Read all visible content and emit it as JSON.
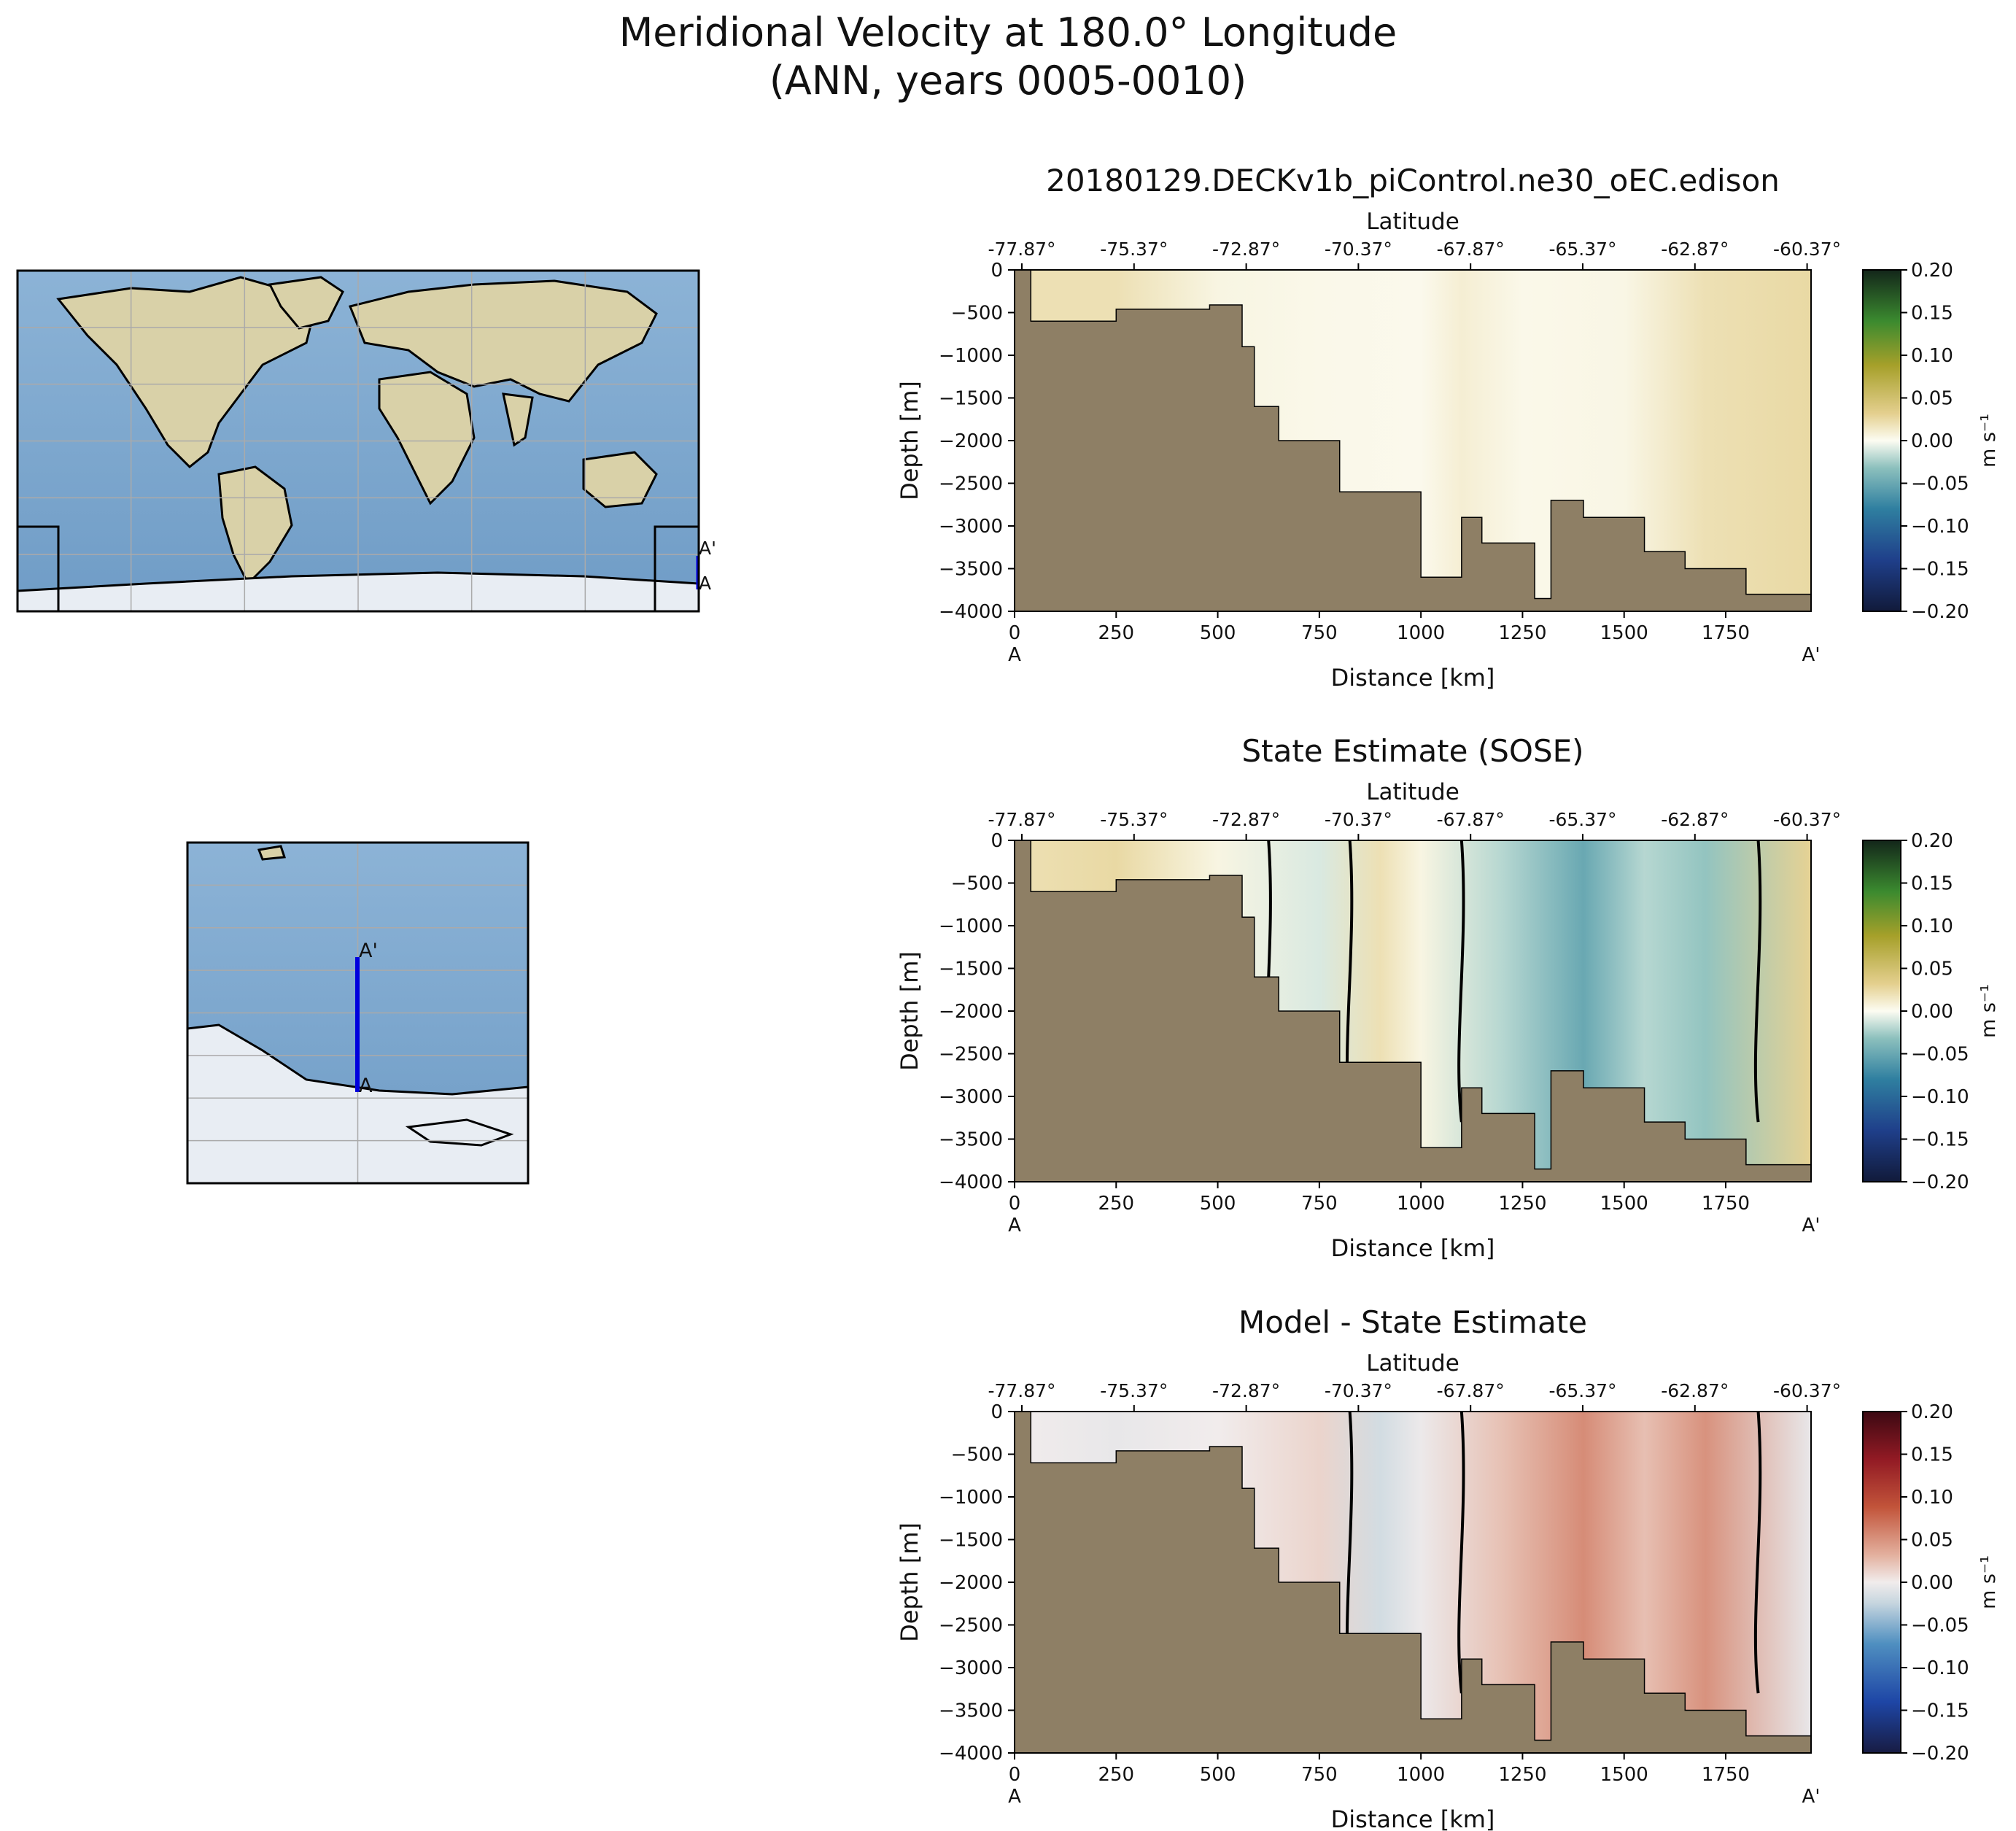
{
  "figure": {
    "title_line1": "Meridional Velocity at 180.0° Longitude",
    "title_line2": "(ANN, years 0005-0010)"
  },
  "maps": {
    "global": {
      "endpoint_a": "A",
      "endpoint_a_prime": "A'",
      "line_color": "#0000dd",
      "land_color": "#d9d1a8",
      "ocean_color": "#7fa8cf",
      "ice_color": "#e8edf3"
    },
    "zoom": {
      "endpoint_a": "A",
      "endpoint_a_prime": "A'",
      "line_color": "#0000dd"
    }
  },
  "chart_data": [
    {
      "type": "heatmap",
      "title": "20180129.DECKv1b_piControl.ne30_oEC.edison",
      "xlabel": "Distance [km]",
      "ylabel": "Depth [m]",
      "top_xlabel": "Latitude",
      "colorbar_label": "m s⁻¹",
      "colormap": "delta (blue-white-yellow-green)",
      "xlim": [
        0,
        1960
      ],
      "ylim": [
        -4000,
        0
      ],
      "clim": [
        -0.2,
        0.2
      ],
      "x_ticks": [
        0,
        250,
        500,
        750,
        1000,
        1250,
        1500,
        1750
      ],
      "y_ticks": [
        0,
        -500,
        -1000,
        -1500,
        -2000,
        -2500,
        -3000,
        -3500,
        -4000
      ],
      "lat_ticks": [
        "-77.87°",
        "-75.37°",
        "-72.87°",
        "-70.37°",
        "-67.87°",
        "-65.37°",
        "-62.87°",
        "-60.37°"
      ],
      "colorbar_ticks": [
        "0.20",
        "0.15",
        "0.10",
        "0.05",
        "0.00",
        "−0.05",
        "−0.10",
        "−0.15",
        "−0.20"
      ],
      "endpoints": [
        "A",
        "A'"
      ],
      "velocity_profile": {
        "distance_km": [
          0,
          250,
          500,
          750,
          1000,
          1100,
          1250,
          1500,
          1700,
          1960
        ],
        "v_m_s": [
          0.02,
          0.02,
          0.005,
          0.003,
          0.002,
          0.01,
          0.003,
          0.004,
          0.02,
          0.025
        ]
      },
      "bathymetry": {
        "distance_km": [
          0,
          40,
          250,
          480,
          560,
          590,
          650,
          800,
          1000,
          1100,
          1150,
          1280,
          1320,
          1400,
          1550,
          1650,
          1800,
          1960
        ],
        "depth_m": [
          0,
          -600,
          -460,
          -410,
          -900,
          -1600,
          -2000,
          -2600,
          -3600,
          -2900,
          -3200,
          -3850,
          -2700,
          -2900,
          -3300,
          -3500,
          -3800,
          -4000
        ]
      }
    },
    {
      "type": "heatmap",
      "title": "State Estimate (SOSE)",
      "xlabel": "Distance [km]",
      "ylabel": "Depth [m]",
      "top_xlabel": "Latitude",
      "colorbar_label": "m s⁻¹",
      "colormap": "delta (blue-white-yellow-green)",
      "xlim": [
        0,
        1960
      ],
      "ylim": [
        -4000,
        0
      ],
      "clim": [
        -0.2,
        0.2
      ],
      "x_ticks": [
        0,
        250,
        500,
        750,
        1000,
        1250,
        1500,
        1750
      ],
      "y_ticks": [
        0,
        -500,
        -1000,
        -1500,
        -2000,
        -2500,
        -3000,
        -3500,
        -4000
      ],
      "lat_ticks": [
        "-77.87°",
        "-75.37°",
        "-72.87°",
        "-70.37°",
        "-67.87°",
        "-65.37°",
        "-62.87°",
        "-60.37°"
      ],
      "colorbar_ticks": [
        "0.20",
        "0.15",
        "0.10",
        "0.05",
        "0.00",
        "−0.05",
        "−0.10",
        "−0.15",
        "−0.20"
      ],
      "endpoints": [
        "A",
        "A'"
      ],
      "velocity_profile": {
        "distance_km": [
          0,
          250,
          500,
          750,
          900,
          1000,
          1200,
          1400,
          1550,
          1700,
          1960
        ],
        "v_m_s": [
          0.02,
          0.025,
          0.005,
          -0.01,
          0.02,
          0.005,
          -0.02,
          -0.05,
          -0.02,
          -0.03,
          0.03
        ]
      },
      "bathymetry": {
        "distance_km": [
          0,
          40,
          250,
          480,
          560,
          590,
          650,
          800,
          1000,
          1100,
          1150,
          1280,
          1320,
          1400,
          1550,
          1650,
          1800,
          1960
        ],
        "depth_m": [
          0,
          -600,
          -460,
          -410,
          -900,
          -1600,
          -2000,
          -2600,
          -3600,
          -2900,
          -3200,
          -3850,
          -2700,
          -2900,
          -3300,
          -3500,
          -3800,
          -4000
        ]
      }
    },
    {
      "type": "heatmap",
      "title": "Model - State Estimate",
      "xlabel": "Distance [km]",
      "ylabel": "Depth [m]",
      "top_xlabel": "Latitude",
      "colorbar_label": "m s⁻¹",
      "colormap": "balance (blue-white-red)",
      "xlim": [
        0,
        1960
      ],
      "ylim": [
        -4000,
        0
      ],
      "clim": [
        -0.2,
        0.2
      ],
      "x_ticks": [
        0,
        250,
        500,
        750,
        1000,
        1250,
        1500,
        1750
      ],
      "y_ticks": [
        0,
        -500,
        -1000,
        -1500,
        -2000,
        -2500,
        -3000,
        -3500,
        -4000
      ],
      "lat_ticks": [
        "-77.87°",
        "-75.37°",
        "-72.87°",
        "-70.37°",
        "-67.87°",
        "-65.37°",
        "-62.87°",
        "-60.37°"
      ],
      "colorbar_ticks": [
        "0.20",
        "0.15",
        "0.10",
        "0.05",
        "0.00",
        "−0.05",
        "−0.10",
        "−0.15",
        "−0.20"
      ],
      "endpoints": [
        "A",
        "A'"
      ],
      "velocity_profile": {
        "distance_km": [
          0,
          250,
          500,
          750,
          900,
          1000,
          1200,
          1400,
          1550,
          1700,
          1960
        ],
        "v_m_s": [
          0.0,
          -0.005,
          0.0,
          0.013,
          -0.018,
          -0.003,
          0.023,
          0.054,
          0.024,
          0.05,
          -0.005
        ]
      },
      "bathymetry": {
        "distance_km": [
          0,
          40,
          250,
          480,
          560,
          590,
          650,
          800,
          1000,
          1100,
          1150,
          1280,
          1320,
          1400,
          1550,
          1650,
          1800,
          1960
        ],
        "depth_m": [
          0,
          -600,
          -460,
          -410,
          -900,
          -1600,
          -2000,
          -2600,
          -3600,
          -2900,
          -3200,
          -3850,
          -2700,
          -2900,
          -3300,
          -3500,
          -3800,
          -4000
        ]
      }
    }
  ]
}
